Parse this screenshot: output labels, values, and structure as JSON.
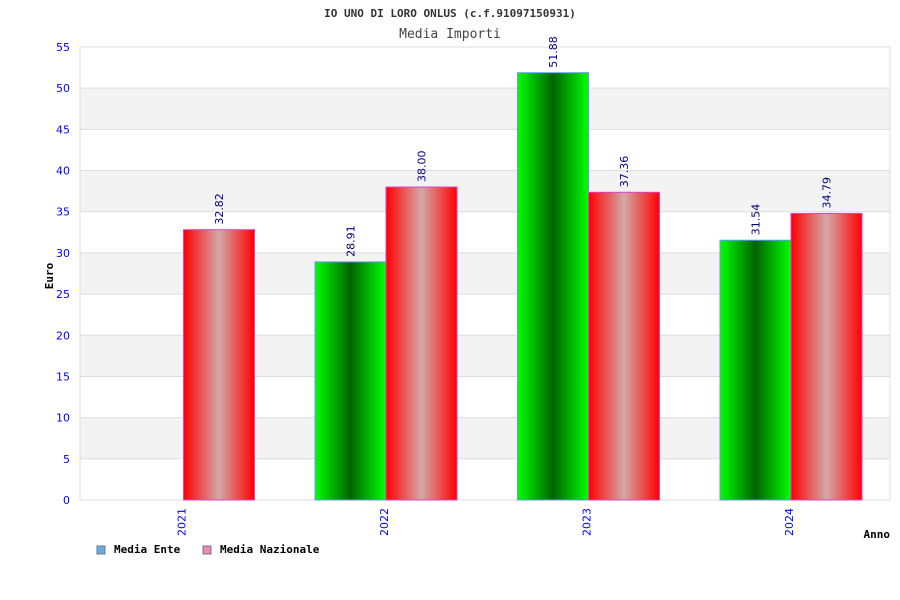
{
  "chart_data": {
    "type": "bar",
    "title": "IO UNO DI LORO ONLUS (c.f.91097150931)",
    "subtitle": "Media Importi",
    "xlabel": "Anno",
    "ylabel": "Euro",
    "ylim": [
      0,
      55
    ],
    "yticks": [
      0,
      5,
      10,
      15,
      20,
      25,
      30,
      35,
      40,
      45,
      50,
      55
    ],
    "categories": [
      "2021",
      "2022",
      "2023",
      "2024"
    ],
    "series": [
      {
        "name": "Media Ente",
        "values": [
          null,
          28.91,
          51.88,
          31.54
        ],
        "labels": [
          "",
          "28.91",
          "51.88",
          "31.54"
        ],
        "legend_color": "#66aaee"
      },
      {
        "name": "Media Nazionale",
        "values": [
          32.82,
          38.0,
          37.36,
          34.79
        ],
        "labels": [
          "32.82",
          "38.00",
          "37.36",
          "34.79"
        ],
        "legend_color": "#ee88bb"
      }
    ],
    "grid": true,
    "legend_position": "bottom-left"
  }
}
